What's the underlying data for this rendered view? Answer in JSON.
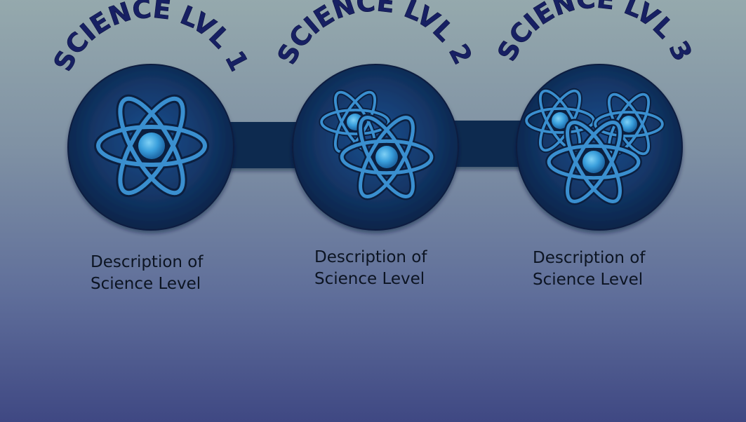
{
  "levels": [
    {
      "title": "SCIENCE LVL 1",
      "description_line1": "Description of",
      "description_line2": "Science Level",
      "atom_count": 1,
      "icon": "atom-icon"
    },
    {
      "title": "SCIENCE LVL 2",
      "description_line1": "Description of",
      "description_line2": "Science Level",
      "atom_count": 2,
      "icon": "atom-icon"
    },
    {
      "title": "SCIENCE LVL 3",
      "description_line1": "Description of",
      "description_line2": "Science Level",
      "atom_count": 3,
      "icon": "atom-icon"
    }
  ],
  "colors": {
    "title": "#172063",
    "node_fill": "#112c5b",
    "connector": "#0c2a50",
    "atom_stroke": "#3a8fcf",
    "nucleus": "#3d9fdc"
  }
}
